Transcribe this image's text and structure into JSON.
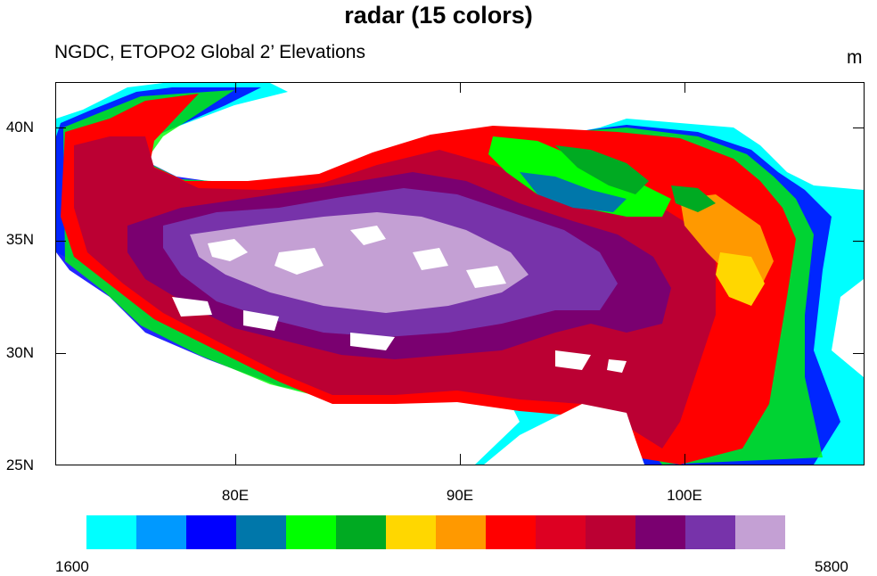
{
  "title": "radar (15 colors)",
  "subtitle": "NGDC, ETOPO2 Global 2’ Elevations",
  "units": "m",
  "lat_labels": [
    "40N",
    "35N",
    "30N",
    "25N"
  ],
  "lon_labels": [
    "80E",
    "90E",
    "100E"
  ],
  "colorbar": {
    "min_label": "1600",
    "max_label": "5800",
    "colors": [
      "#00ffff",
      "#0099ff",
      "#0000ff",
      "#0077aa",
      "#00ff00",
      "#00aa22",
      "#ffd700",
      "#ff9900",
      "#ff0000",
      "#dd0022",
      "#bb0033",
      "#7a0070",
      "#7733aa",
      "#c4a0d4"
    ]
  },
  "colors": {
    "cyan": "#00ffff",
    "lightblue": "#0099ff",
    "blue": "#0000ff",
    "teal": "#0077aa",
    "green": "#00ff00",
    "darkgreen": "#00aa22",
    "yellow": "#ffd700",
    "orange": "#ff9900",
    "red": "#ff0000",
    "crimson": "#dd0022",
    "darkred": "#bb0033",
    "purple": "#7a0070",
    "violet": "#7733aa",
    "lavender": "#c4a0d4",
    "white": "#ffffff"
  }
}
